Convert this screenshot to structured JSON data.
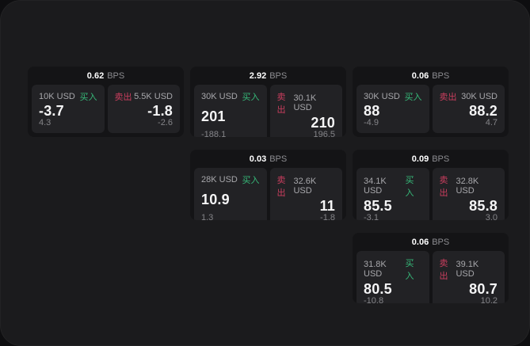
{
  "labels": {
    "bps": "BPS",
    "buy": "买入",
    "sell": "卖出"
  },
  "colors": {
    "buy_green": "#36b979",
    "sell_red": "#cb3e5e",
    "panel_bg": "#1b1b1d",
    "card_bg": "#141416",
    "tile_bg": "#222225"
  },
  "cards": [
    {
      "bps": "0.62",
      "buy_size": "10K USD",
      "buy_price": "-3.7",
      "buy_delta": "4.3",
      "sell_size": "5.5K USD",
      "sell_price": "-1.8",
      "sell_delta": "-2.6"
    },
    {
      "bps": "2.92",
      "buy_size": "30K USD",
      "buy_price": "201",
      "buy_delta": "-188.1",
      "sell_size": "30.1K USD",
      "sell_price": "210",
      "sell_delta": "196.5"
    },
    {
      "bps": "0.06",
      "buy_size": "30K USD",
      "buy_price": "88",
      "buy_delta": "-4.9",
      "sell_size": "30K USD",
      "sell_price": "88.2",
      "sell_delta": "4.7"
    },
    {
      "bps": "0.03",
      "buy_size": "28K USD",
      "buy_price": "10.9",
      "buy_delta": "1.3",
      "sell_size": "32.6K USD",
      "sell_price": "11",
      "sell_delta": "-1.8"
    },
    {
      "bps": "0.09",
      "buy_size": "34.1K USD",
      "buy_price": "85.5",
      "buy_delta": "-3.1",
      "sell_size": "32.8K USD",
      "sell_price": "85.8",
      "sell_delta": "3.0"
    },
    {
      "bps": "0.06",
      "buy_size": "31.8K USD",
      "buy_price": "80.5",
      "buy_delta": "-10.8",
      "sell_size": "39.1K USD",
      "sell_price": "80.7",
      "sell_delta": "10.2"
    }
  ]
}
